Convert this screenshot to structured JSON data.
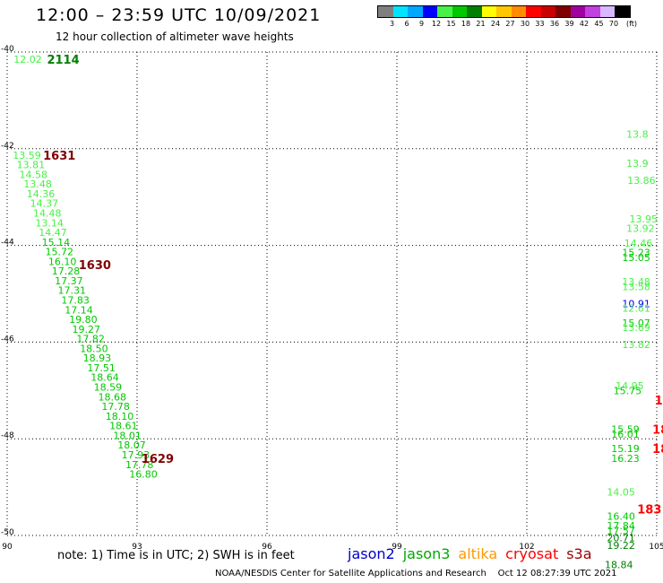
{
  "title": "12:00 – 23:59 UTC 10/09/2021",
  "subtitle": "12 hour collection of altimeter wave heights",
  "colorbar": {
    "unit": "(ft)",
    "labels": [
      "3",
      "6",
      "9",
      "12",
      "15",
      "18",
      "21",
      "24",
      "27",
      "30",
      "33",
      "36",
      "39",
      "42",
      "45",
      "70"
    ],
    "colors": [
      "#7f7f7f",
      "#00e4ff",
      "#00a8ff",
      "#0000ff",
      "#48f048",
      "#00c800",
      "#008000",
      "#ffff00",
      "#ffc800",
      "#ff8c00",
      "#ff0000",
      "#c80000",
      "#800000",
      "#a000a0",
      "#c040e0",
      "#d8b8ff",
      "#000000"
    ]
  },
  "note": "note:  1) Time is in UTC;  2) SWH is in feet",
  "legend": [
    {
      "name": "jason2",
      "color": "#0000cc"
    },
    {
      "name": "jason3",
      "color": "#00aa00"
    },
    {
      "name": "altika",
      "color": "#ff9900"
    },
    {
      "name": "cryosat",
      "color": "#ff0000"
    },
    {
      "name": "s3a",
      "color": "#990000"
    }
  ],
  "footer": "NOAA/NESDIS Center for Satellite Applications and Research    Oct 12 08:27:39 UTC 2021",
  "chart_data": {
    "type": "scatter",
    "xlim": [
      90,
      105
    ],
    "ylim": [
      -50,
      -40
    ],
    "x_ticks": [
      90,
      93,
      96,
      99,
      102,
      105
    ],
    "y_ticks": [
      -40,
      -42,
      -44,
      -46,
      -48,
      -50
    ],
    "grid": true,
    "time_labels": [
      {
        "x": 90.92,
        "y": -40.15,
        "text": "2114",
        "color": "#008000"
      },
      {
        "x": 90.83,
        "y": -42.13,
        "text": "1631",
        "color": "#800000"
      },
      {
        "x": 91.65,
        "y": -44.4,
        "text": "1630",
        "color": "#800000"
      },
      {
        "x": 93.1,
        "y": -48.4,
        "text": "1629",
        "color": "#800000"
      }
    ],
    "points": [
      {
        "x": 90.15,
        "y": -40.15,
        "swh": "12.02",
        "color": "#48f048"
      },
      {
        "x": 90.13,
        "y": -42.13,
        "swh": "13.59",
        "color": "#48f048"
      },
      {
        "x": 90.22,
        "y": -42.33,
        "swh": "13.81",
        "color": "#48f048"
      },
      {
        "x": 90.28,
        "y": -42.53,
        "swh": "14.58",
        "color": "#48f048"
      },
      {
        "x": 90.38,
        "y": -42.73,
        "swh": "13.48",
        "color": "#48f048"
      },
      {
        "x": 90.45,
        "y": -42.93,
        "swh": "14.36",
        "color": "#48f048"
      },
      {
        "x": 90.53,
        "y": -43.13,
        "swh": "14.37",
        "color": "#48f048"
      },
      {
        "x": 90.6,
        "y": -43.33,
        "swh": "14.48",
        "color": "#48f048"
      },
      {
        "x": 90.65,
        "y": -43.53,
        "swh": "13.14",
        "color": "#48f048"
      },
      {
        "x": 90.73,
        "y": -43.73,
        "swh": "14.47",
        "color": "#48f048"
      },
      {
        "x": 90.8,
        "y": -43.93,
        "swh": "15.14",
        "color": "#00c800"
      },
      {
        "x": 90.88,
        "y": -44.13,
        "swh": "15.72",
        "color": "#00c800"
      },
      {
        "x": 90.95,
        "y": -44.33,
        "swh": "16.10",
        "color": "#00c800"
      },
      {
        "x": 91.03,
        "y": -44.53,
        "swh": "17.28",
        "color": "#00c800"
      },
      {
        "x": 91.1,
        "y": -44.73,
        "swh": "17.37",
        "color": "#00c800"
      },
      {
        "x": 91.17,
        "y": -44.93,
        "swh": "17.31",
        "color": "#00c800"
      },
      {
        "x": 91.25,
        "y": -45.13,
        "swh": "17.83",
        "color": "#00c800"
      },
      {
        "x": 91.33,
        "y": -45.33,
        "swh": "17.14",
        "color": "#00c800"
      },
      {
        "x": 91.43,
        "y": -45.53,
        "swh": "19.80",
        "color": "#00c800"
      },
      {
        "x": 91.5,
        "y": -45.73,
        "swh": "19.27",
        "color": "#00c800"
      },
      {
        "x": 91.6,
        "y": -45.93,
        "swh": "17.82",
        "color": "#00c800"
      },
      {
        "x": 91.68,
        "y": -46.13,
        "swh": "18.50",
        "color": "#00c800"
      },
      {
        "x": 91.75,
        "y": -46.33,
        "swh": "18.93",
        "color": "#00c800"
      },
      {
        "x": 91.85,
        "y": -46.53,
        "swh": "17.51",
        "color": "#00c800"
      },
      {
        "x": 91.93,
        "y": -46.73,
        "swh": "18.64",
        "color": "#00c800"
      },
      {
        "x": 92.0,
        "y": -46.93,
        "swh": "18.59",
        "color": "#00c800"
      },
      {
        "x": 92.1,
        "y": -47.13,
        "swh": "18.68",
        "color": "#00c800"
      },
      {
        "x": 92.18,
        "y": -47.33,
        "swh": "17.78",
        "color": "#00c800"
      },
      {
        "x": 92.27,
        "y": -47.53,
        "swh": "18.10",
        "color": "#00c800"
      },
      {
        "x": 92.36,
        "y": -47.73,
        "swh": "18.61",
        "color": "#00c800"
      },
      {
        "x": 92.45,
        "y": -47.93,
        "swh": "18.01",
        "color": "#00c800"
      },
      {
        "x": 92.55,
        "y": -48.13,
        "swh": "18.07",
        "color": "#00c800"
      },
      {
        "x": 92.64,
        "y": -48.33,
        "swh": "17.93",
        "color": "#00c800"
      },
      {
        "x": 92.73,
        "y": -48.53,
        "swh": "17.78",
        "color": "#00c800"
      },
      {
        "x": 92.82,
        "y": -48.73,
        "swh": "16.80",
        "color": "#00c800"
      },
      {
        "x": 104.3,
        "y": -41.7,
        "swh": "13.8",
        "color": "#48f048"
      },
      {
        "x": 104.3,
        "y": -42.3,
        "swh": "13.9",
        "color": "#48f048"
      },
      {
        "x": 104.32,
        "y": -42.65,
        "swh": "13.86",
        "color": "#48f048"
      },
      {
        "x": 104.37,
        "y": -43.45,
        "swh": "13.95",
        "color": "#48f048"
      },
      {
        "x": 104.3,
        "y": -43.65,
        "swh": "13.92",
        "color": "#48f048"
      },
      {
        "x": 104.25,
        "y": -43.95,
        "swh": "14.46",
        "color": "#48f048"
      },
      {
        "x": 104.2,
        "y": -44.15,
        "swh": "15.23",
        "color": "#00c800"
      },
      {
        "x": 104.2,
        "y": -44.25,
        "swh": "15.05",
        "color": "#00c800"
      },
      {
        "x": 104.2,
        "y": -44.75,
        "swh": "13.48",
        "color": "#48f048"
      },
      {
        "x": 104.2,
        "y": -44.85,
        "swh": "13.58",
        "color": "#48f048"
      },
      {
        "x": 104.2,
        "y": -45.2,
        "swh": "10.91",
        "color": "#0000ff"
      },
      {
        "x": 104.2,
        "y": -45.3,
        "swh": "12.61",
        "color": "#48f048"
      },
      {
        "x": 104.2,
        "y": -45.6,
        "swh": "15.07",
        "color": "#00c800"
      },
      {
        "x": 104.2,
        "y": -45.7,
        "swh": "13.69",
        "color": "#48f048"
      },
      {
        "x": 104.2,
        "y": -46.05,
        "swh": "13.82",
        "color": "#48f048"
      },
      {
        "x": 104.05,
        "y": -46.9,
        "swh": "14.95",
        "color": "#48f048"
      },
      {
        "x": 104.0,
        "y": -47.0,
        "swh": "15.75",
        "color": "#00c800"
      },
      {
        "x": 103.95,
        "y": -47.8,
        "swh": "15.59",
        "color": "#00c800"
      },
      {
        "x": 103.95,
        "y": -47.9,
        "swh": "16.01",
        "color": "#00c800"
      },
      {
        "x": 103.95,
        "y": -48.2,
        "swh": "15.19",
        "color": "#00c800"
      },
      {
        "x": 103.95,
        "y": -48.4,
        "swh": "16.23",
        "color": "#00c800"
      },
      {
        "x": 103.85,
        "y": -49.1,
        "swh": "14.05",
        "color": "#48f048"
      },
      {
        "x": 103.85,
        "y": -49.6,
        "swh": "16.40",
        "color": "#00c800"
      },
      {
        "x": 103.85,
        "y": -49.8,
        "swh": "17.84",
        "color": "#00c800"
      },
      {
        "x": 103.85,
        "y": -49.9,
        "swh": "17.57",
        "color": "#00c800"
      },
      {
        "x": 103.85,
        "y": -50.05,
        "swh": "20.71",
        "color": "#008000"
      },
      {
        "x": 103.85,
        "y": -50.2,
        "swh": "19.22",
        "color": "#008000"
      },
      {
        "x": 103.8,
        "y": -50.6,
        "swh": "18.84",
        "color": "#008000"
      }
    ],
    "edge_labels": [
      {
        "x": 104.95,
        "y": -47.2,
        "text": "1",
        "color": "#ff0000"
      },
      {
        "x": 104.9,
        "y": -47.8,
        "text": "18",
        "color": "#ff0000"
      },
      {
        "x": 104.9,
        "y": -48.2,
        "text": "18",
        "color": "#ff0000"
      },
      {
        "x": 104.55,
        "y": -49.45,
        "text": "183",
        "color": "#ff0000"
      }
    ]
  }
}
